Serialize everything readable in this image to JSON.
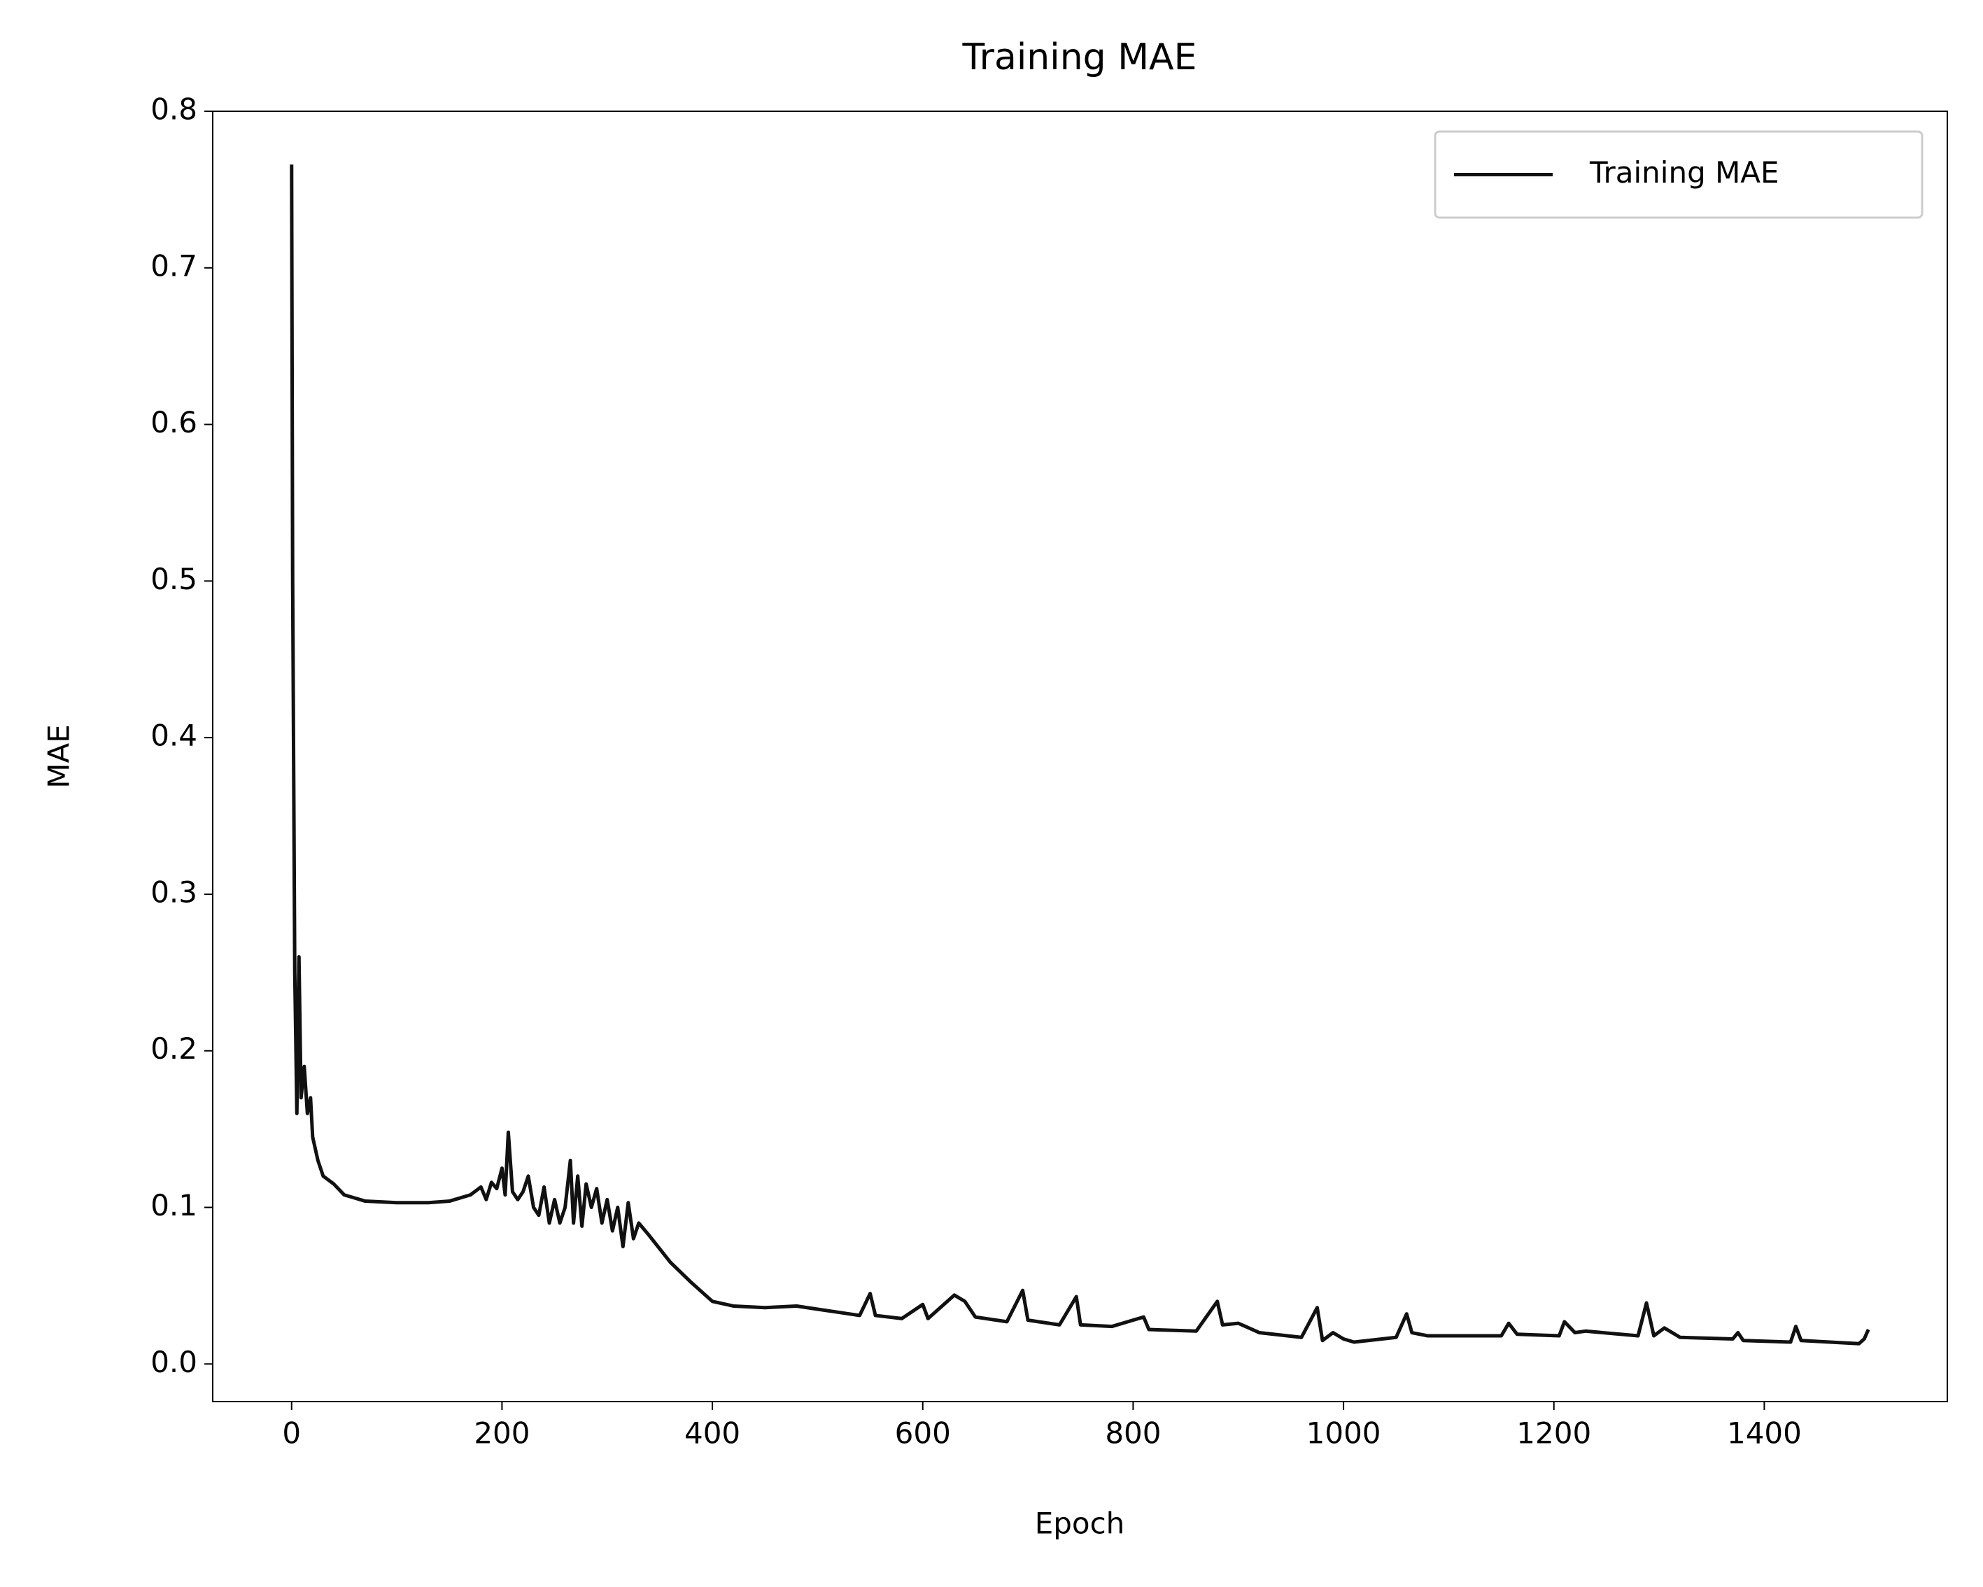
{
  "chart_data": {
    "type": "line",
    "title": "Training MAE",
    "x_label": "Epoch",
    "y_label": "MAE",
    "x": [
      0,
      1,
      3,
      5,
      7,
      9,
      12,
      15,
      18,
      20,
      25,
      30,
      40,
      50,
      70,
      100,
      130,
      150,
      170,
      180,
      185,
      190,
      195,
      200,
      203,
      206,
      210,
      215,
      220,
      225,
      230,
      235,
      240,
      245,
      250,
      255,
      260,
      265,
      268,
      272,
      276,
      280,
      285,
      290,
      295,
      300,
      305,
      310,
      315,
      320,
      325,
      330,
      340,
      360,
      380,
      400,
      420,
      450,
      480,
      500,
      520,
      540,
      550,
      555,
      580,
      600,
      605,
      630,
      640,
      650,
      680,
      695,
      700,
      730,
      746,
      750,
      780,
      810,
      815,
      860,
      880,
      885,
      900,
      920,
      960,
      975,
      980,
      990,
      1000,
      1010,
      1050,
      1060,
      1065,
      1080,
      1150,
      1157,
      1165,
      1205,
      1210,
      1220,
      1230,
      1280,
      1288,
      1295,
      1305,
      1320,
      1370,
      1375,
      1380,
      1425,
      1430,
      1435,
      1490,
      1495,
      1499
    ],
    "series": [
      {
        "name": "Training MAE",
        "color": "#111111",
        "values": [
          0.766,
          0.5,
          0.25,
          0.16,
          0.26,
          0.17,
          0.19,
          0.16,
          0.17,
          0.145,
          0.13,
          0.12,
          0.115,
          0.108,
          0.104,
          0.103,
          0.103,
          0.104,
          0.108,
          0.113,
          0.105,
          0.116,
          0.112,
          0.125,
          0.108,
          0.148,
          0.11,
          0.105,
          0.11,
          0.12,
          0.1,
          0.095,
          0.113,
          0.09,
          0.105,
          0.09,
          0.1,
          0.13,
          0.09,
          0.12,
          0.088,
          0.115,
          0.1,
          0.112,
          0.09,
          0.105,
          0.085,
          0.1,
          0.075,
          0.103,
          0.08,
          0.09,
          0.082,
          0.065,
          0.052,
          0.04,
          0.037,
          0.036,
          0.037,
          0.035,
          0.033,
          0.031,
          0.045,
          0.031,
          0.029,
          0.038,
          0.029,
          0.044,
          0.04,
          0.03,
          0.027,
          0.047,
          0.028,
          0.025,
          0.043,
          0.025,
          0.024,
          0.03,
          0.022,
          0.021,
          0.04,
          0.025,
          0.026,
          0.02,
          0.017,
          0.036,
          0.015,
          0.02,
          0.016,
          0.014,
          0.017,
          0.032,
          0.02,
          0.018,
          0.018,
          0.026,
          0.019,
          0.018,
          0.027,
          0.02,
          0.021,
          0.018,
          0.039,
          0.018,
          0.023,
          0.017,
          0.016,
          0.02,
          0.015,
          0.014,
          0.024,
          0.015,
          0.013,
          0.016,
          0.022
        ]
      }
    ],
    "xlim": [
      -75,
      1574
    ],
    "ylim": [
      -0.024,
      0.8
    ],
    "xticks": [
      0,
      200,
      400,
      600,
      800,
      1000,
      1200,
      1400
    ],
    "yticks": [
      {
        "value": 0,
        "label": "0.0"
      },
      0.1,
      0.2,
      0.3,
      0.4,
      0.5,
      0.6,
      0.7,
      0.8
    ],
    "grid": false,
    "legend": "upper right"
  }
}
